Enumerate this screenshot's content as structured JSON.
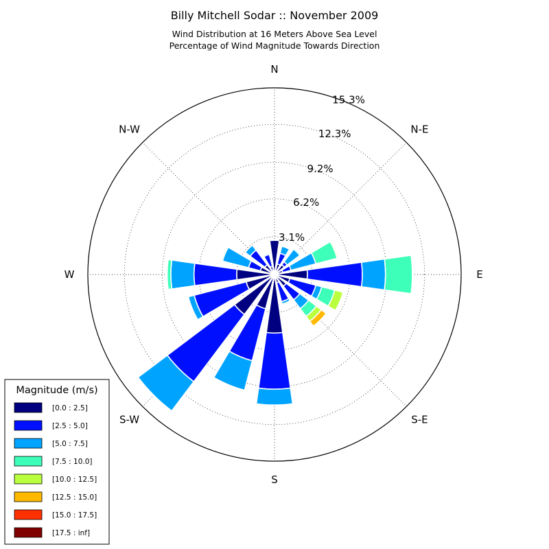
{
  "chart_data": {
    "type": "windrose",
    "title": "Billy Mitchell Sodar :: November 2009",
    "subtitle_lines": [
      "Wind Distribution at 16 Meters Above Sea Level",
      "Percentage of Wind Magnitude Towards Direction"
    ],
    "direction_labels": [
      "N",
      "N-E",
      "E",
      "S-E",
      "S",
      "S-W",
      "W",
      "N-W"
    ],
    "ring_labels": [
      "3.1%",
      "6.2%",
      "9.2%",
      "12.3%",
      "15.3%"
    ],
    "ring_values": [
      3.1,
      6.2,
      9.2,
      12.3,
      15.3
    ],
    "rmax": 15.3,
    "grid": true,
    "legend": {
      "title": "Magnitude (m/s)",
      "placement": "bottom-left",
      "bins": [
        "[0.0 : 2.5]",
        "[2.5 : 5.0]",
        "[5.0 : 7.5]",
        "[7.5 : 10.0]",
        "[10.0 : 12.5]",
        "[12.5 : 15.0]",
        "[15.0 : 17.5]",
        "[17.5 : inf]"
      ],
      "colors": [
        "#000080",
        "#0010ff",
        "#00a4ff",
        "#3dffb9",
        "#b9ff3d",
        "#ffb900",
        "#ff3000",
        "#800000"
      ]
    },
    "sector_width_deg": 16,
    "sectors": [
      {
        "dir_deg": 0,
        "cumulative": [
          2.8,
          2.8,
          2.8,
          2.8,
          2.8,
          2.8,
          2.8,
          2.8
        ]
      },
      {
        "dir_deg": 22.5,
        "cumulative": [
          0.9,
          1.8,
          2.4,
          2.4,
          2.4,
          2.4,
          2.4,
          2.4
        ]
      },
      {
        "dir_deg": 45,
        "cumulative": [
          1.0,
          1.3,
          2.6,
          2.7,
          2.7,
          2.7,
          2.7,
          2.7
        ]
      },
      {
        "dir_deg": 67.5,
        "cumulative": [
          0.7,
          1.4,
          3.5,
          5.3,
          5.4,
          5.4,
          5.4,
          5.4
        ]
      },
      {
        "dir_deg": 90,
        "cumulative": [
          2.7,
          7.2,
          9.1,
          11.3,
          11.3,
          11.3,
          11.3,
          11.3
        ]
      },
      {
        "dir_deg": 112.5,
        "cumulative": [
          1.3,
          3.5,
          4.0,
          5.1,
          5.8,
          5.8,
          5.8,
          5.8
        ]
      },
      {
        "dir_deg": 135,
        "cumulative": [
          1.2,
          2.6,
          3.5,
          4.3,
          4.8,
          5.3,
          5.3,
          5.3
        ]
      },
      {
        "dir_deg": 157.5,
        "cumulative": [
          0.7,
          2.3,
          2.5,
          2.6,
          2.6,
          2.6,
          2.6,
          2.6
        ]
      },
      {
        "dir_deg": 180,
        "cumulative": [
          4.8,
          9.4,
          10.7,
          10.7,
          10.7,
          10.7,
          10.7,
          10.7
        ]
      },
      {
        "dir_deg": 202.5,
        "cumulative": [
          2.9,
          7.3,
          9.8,
          9.8,
          9.8,
          9.8,
          9.8,
          9.8
        ]
      },
      {
        "dir_deg": 225,
        "cumulative": [
          4.1,
          11.0,
          14.0,
          14.0,
          14.0,
          14.0,
          14.0,
          14.0
        ]
      },
      {
        "dir_deg": 247.5,
        "cumulative": [
          2.4,
          6.8,
          7.3,
          7.3,
          7.3,
          7.3,
          7.3,
          7.3
        ]
      },
      {
        "dir_deg": 270,
        "cumulative": [
          3.1,
          6.6,
          8.5,
          8.8,
          8.8,
          8.8,
          8.8,
          8.8
        ]
      },
      {
        "dir_deg": 292.5,
        "cumulative": [
          1.2,
          2.2,
          4.4,
          4.5,
          4.5,
          4.5,
          4.5,
          4.5
        ]
      },
      {
        "dir_deg": 315,
        "cumulative": [
          1.0,
          2.5,
          3.0,
          3.0,
          3.0,
          3.0,
          3.0,
          3.0
        ]
      },
      {
        "dir_deg": 337.5,
        "cumulative": [
          0.7,
          1.7,
          1.8,
          1.8,
          1.8,
          1.8,
          1.8,
          1.8
        ]
      }
    ]
  }
}
